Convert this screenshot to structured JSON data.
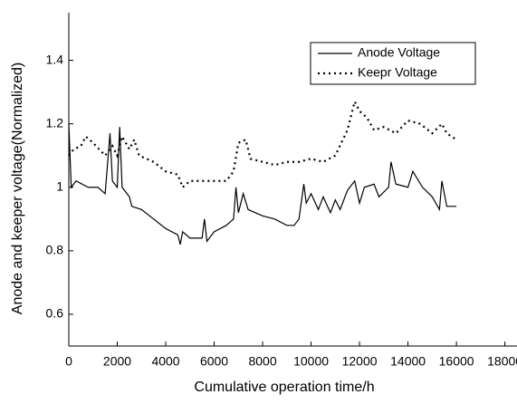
{
  "chart_data": {
    "type": "line",
    "x_label": "Cumulative operation time/h",
    "y_label": "Anode and keeper voltage(Normalized)",
    "xlim": [
      0,
      18500
    ],
    "xticks": [
      0,
      2000,
      4000,
      6000,
      8000,
      10000,
      12000,
      14000,
      16000,
      18000
    ],
    "ylim": [
      0.5,
      1.55
    ],
    "yticks": [
      0.6,
      0.8,
      1.0,
      1.2,
      1.4
    ],
    "legend": "upper right",
    "series": [
      {
        "name": "Anode Voltage",
        "color": "#000000",
        "style": "solid",
        "x": [
          0,
          100,
          300,
          800,
          1200,
          1500,
          1700,
          1800,
          2000,
          2100,
          2200,
          2500,
          2600,
          3000,
          3500,
          4000,
          4500,
          4600,
          4700,
          5000,
          5500,
          5600,
          5700,
          6000,
          6500,
          6800,
          6900,
          7000,
          7200,
          7400,
          8000,
          8500,
          9000,
          9300,
          9500,
          9700,
          9800,
          10000,
          10300,
          10500,
          10800,
          11000,
          11200,
          11500,
          11800,
          12000,
          12200,
          12600,
          12800,
          13200,
          13300,
          13500,
          14000,
          14200,
          14600,
          15000,
          15300,
          15400,
          15600,
          16000
        ],
        "values": [
          1.2,
          1.0,
          1.02,
          1.0,
          1.0,
          0.98,
          1.17,
          1.02,
          1.0,
          1.19,
          1.0,
          0.97,
          0.94,
          0.93,
          0.9,
          0.87,
          0.85,
          0.82,
          0.86,
          0.84,
          0.84,
          0.9,
          0.83,
          0.86,
          0.88,
          0.9,
          1.0,
          0.92,
          0.98,
          0.93,
          0.91,
          0.9,
          0.88,
          0.88,
          0.9,
          1.01,
          0.95,
          0.98,
          0.93,
          0.97,
          0.92,
          0.96,
          0.93,
          0.99,
          1.02,
          0.95,
          1.0,
          1.01,
          0.97,
          1.0,
          1.08,
          1.01,
          1.0,
          1.05,
          1.0,
          0.97,
          0.93,
          1.02,
          0.94,
          0.94
        ]
      },
      {
        "name": "Keepr Voltage",
        "color": "#000000",
        "style": "dotted",
        "x": [
          0,
          200,
          500,
          700,
          1000,
          1500,
          1800,
          2000,
          2200,
          2500,
          2700,
          2900,
          3200,
          3500,
          4000,
          4500,
          4700,
          5000,
          5500,
          6000,
          6500,
          6800,
          7000,
          7300,
          7500,
          8000,
          8500,
          9000,
          9500,
          10000,
          10500,
          11000,
          11500,
          11800,
          12000,
          12300,
          12600,
          13000,
          13500,
          14000,
          14500,
          15000,
          15400,
          15600,
          16000
        ],
        "values": [
          1.1,
          1.12,
          1.13,
          1.16,
          1.14,
          1.1,
          1.13,
          1.1,
          1.16,
          1.12,
          1.15,
          1.1,
          1.09,
          1.08,
          1.05,
          1.04,
          1.0,
          1.02,
          1.02,
          1.02,
          1.02,
          1.05,
          1.14,
          1.15,
          1.09,
          1.08,
          1.07,
          1.08,
          1.08,
          1.09,
          1.08,
          1.1,
          1.18,
          1.27,
          1.24,
          1.22,
          1.18,
          1.19,
          1.17,
          1.21,
          1.2,
          1.17,
          1.2,
          1.17,
          1.15
        ]
      }
    ]
  }
}
